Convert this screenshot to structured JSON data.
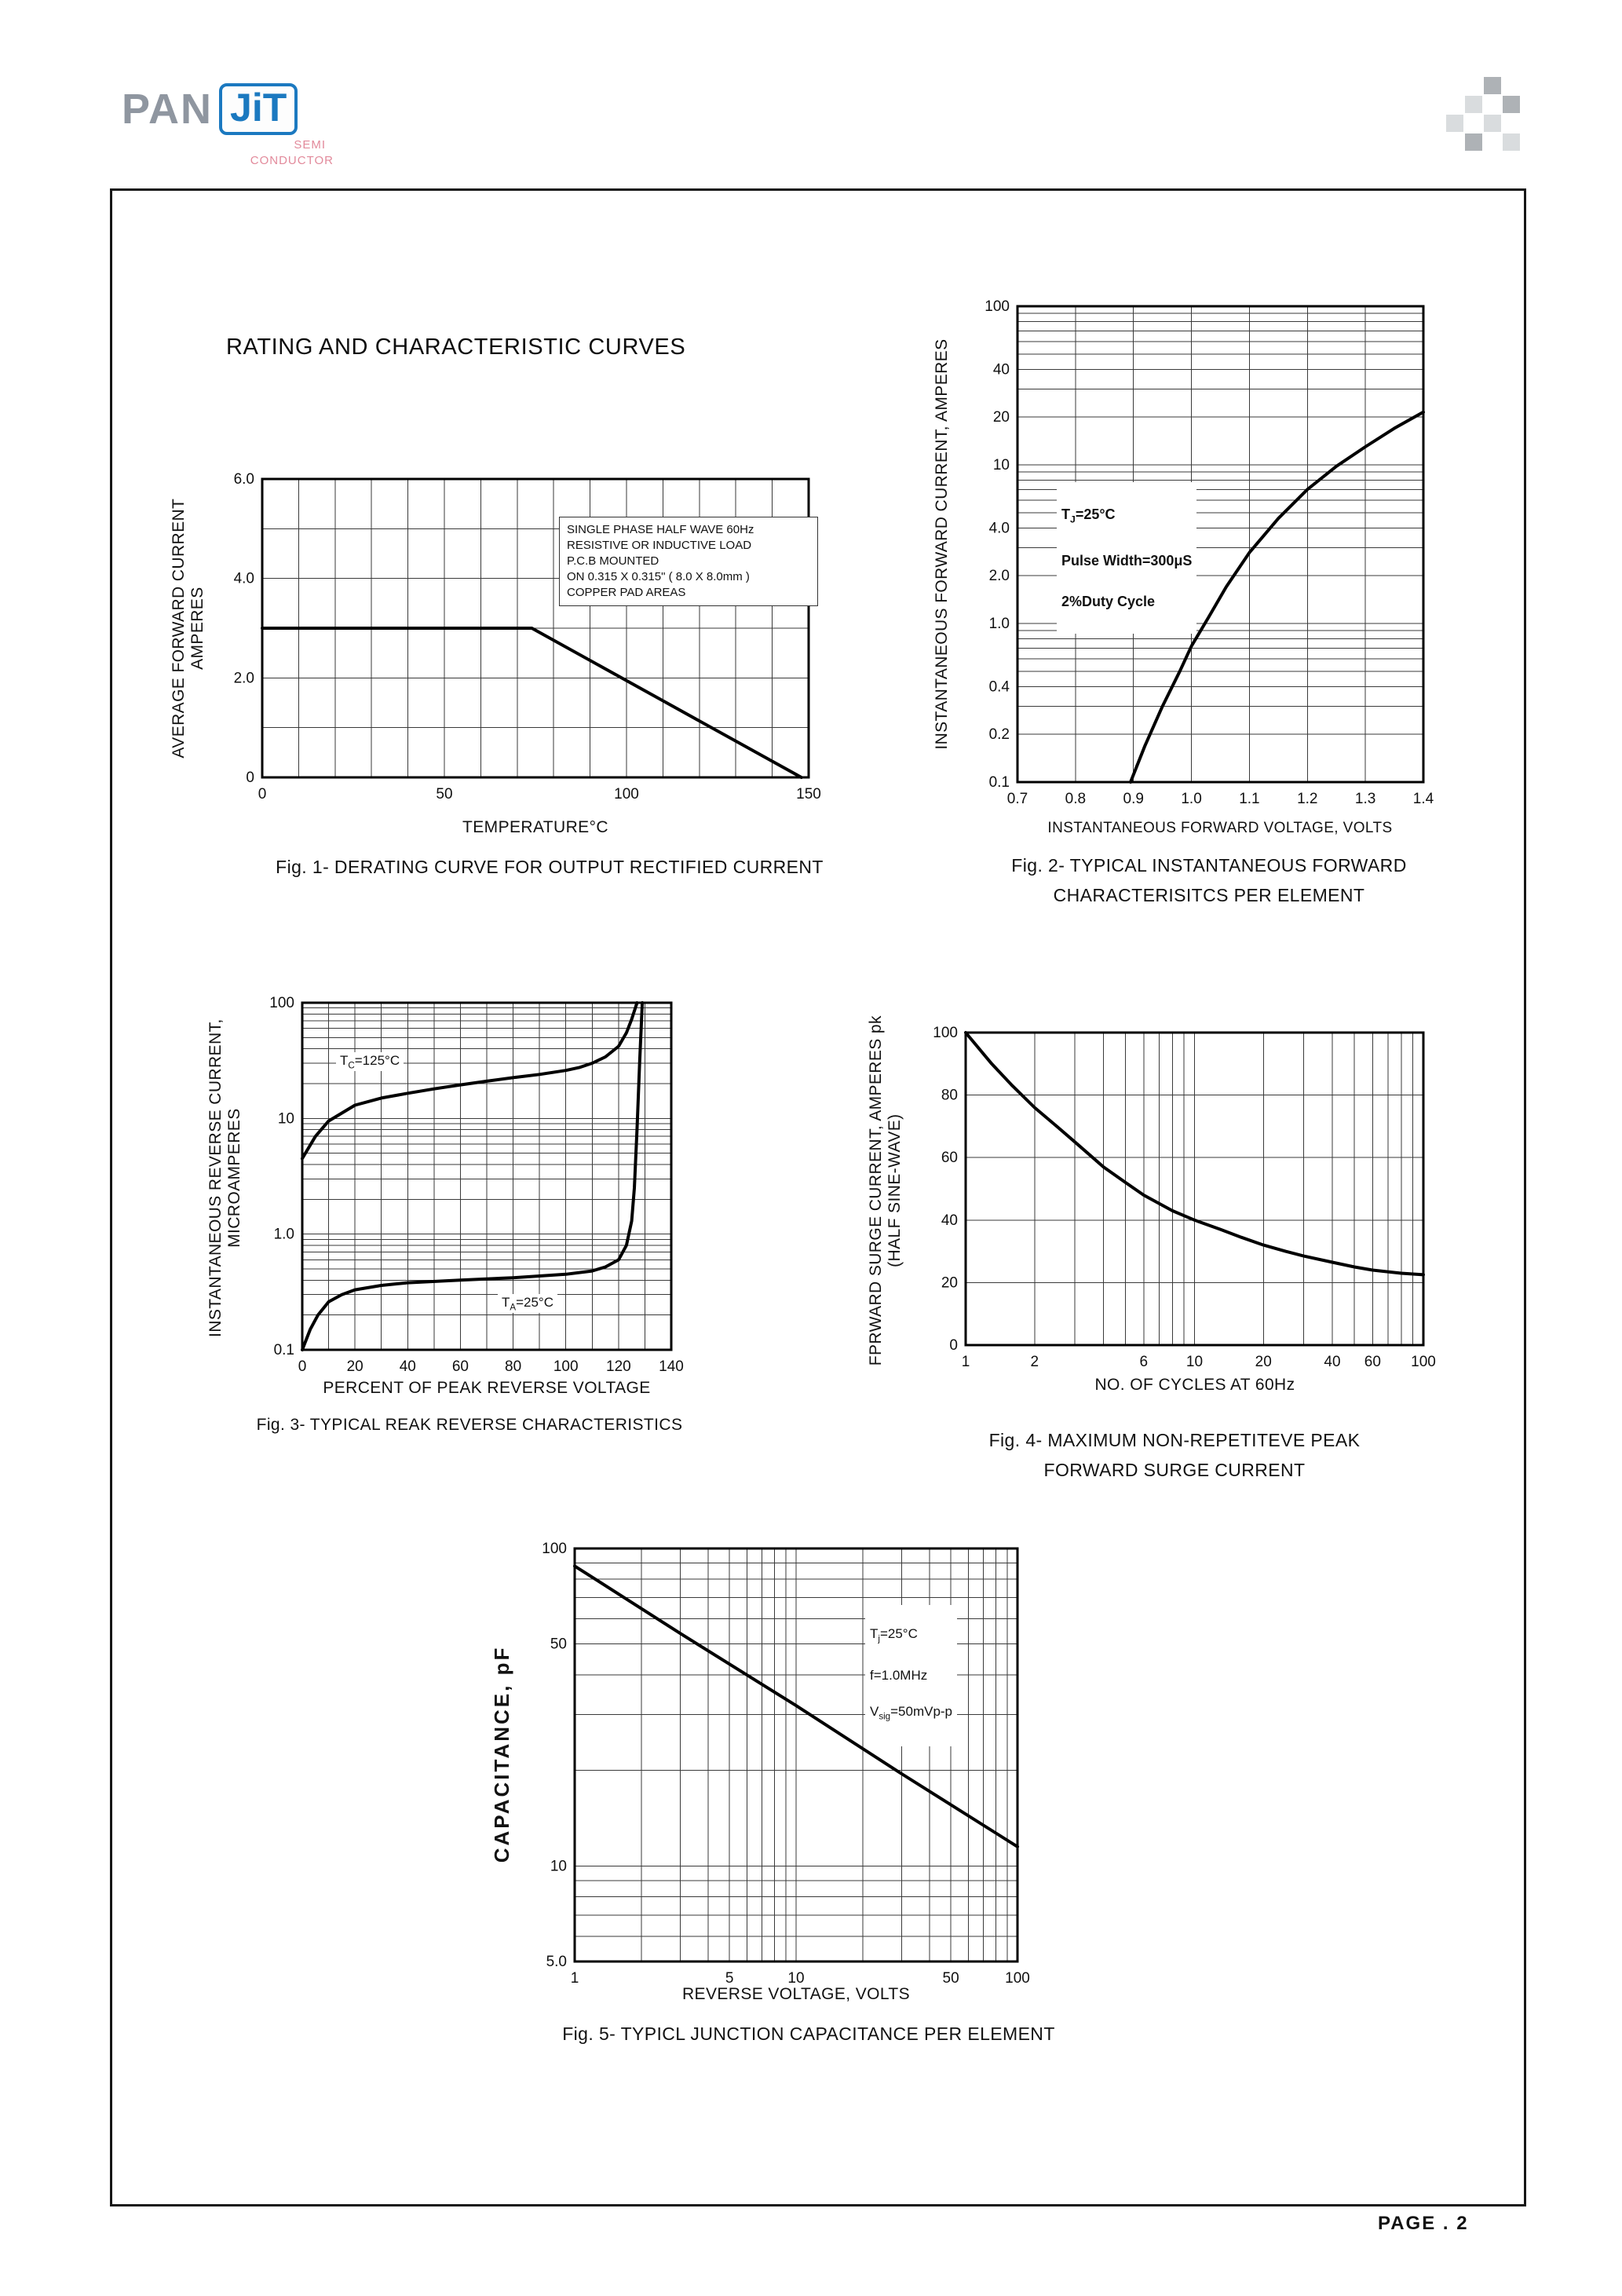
{
  "page": {
    "title": "RATING AND CHARACTERISTIC CURVES",
    "footer": "PAGE . 2"
  },
  "logo": {
    "pan": "PAN",
    "jit": "JiT",
    "semi": "SEMI",
    "conductor": "CONDUCTOR",
    "blue": "#1b79c0",
    "gray": "#8f96a0",
    "pink": "#e28a9b"
  },
  "chart_data": {
    "fig1": {
      "type": "line",
      "caption": "Fig. 1- DERATING CURVE FOR OUTPUT RECTIFIED CURRENT",
      "xlabel": "TEMPERATURE°C",
      "ylabel": "AVERAGE FORWARD CURRENT\nAMPERES",
      "x_axis": {
        "scale": "linear",
        "min": 0,
        "max": 150,
        "grid_step": 10,
        "ticks": [
          0,
          50,
          100,
          150
        ],
        "tick_labels": [
          "0",
          "50",
          "100",
          "150"
        ]
      },
      "y_axis": {
        "scale": "linear",
        "min": 0,
        "max": 6,
        "grid_step": 1,
        "ticks": [
          0,
          2,
          4,
          6
        ],
        "tick_labels": [
          "0",
          "2.0",
          "4.0",
          "6.0"
        ]
      },
      "margins": {
        "l": 84,
        "t": 18,
        "r": 20,
        "b": 34
      },
      "conditions": "SINGLE PHASE HALF WAVE 60Hz\nRESISTIVE OR INDUCTIVE LOAD\nP.C.B MOUNTED\nON 0.315 X 0.315\" ( 8.0 X 8.0mm )\nCOPPER PAD AREAS",
      "series": [
        {
          "name": "derating-curve",
          "points": [
            [
              0,
              3
            ],
            [
              74,
              3
            ],
            [
              148,
              0
            ]
          ]
        }
      ]
    },
    "fig2": {
      "type": "line",
      "caption": "Fig. 2- TYPICAL INSTANTANEOUS FORWARD\nCHARACTERISITCS PER ELEMENT",
      "xlabel": "INSTANTANEOUS FORWARD VOLTAGE, VOLTS",
      "ylabel": "INSTANTANEOUS FORWARD CURRENT, AMPERES",
      "x_axis": {
        "scale": "linear",
        "min": 0.7,
        "max": 1.4,
        "grid_step": 0.1,
        "ticks": [
          0.7,
          0.8,
          0.9,
          1.0,
          1.1,
          1.2,
          1.3,
          1.4
        ],
        "tick_labels": [
          "0.7",
          "0.8",
          "0.9",
          "1.0",
          "1.1",
          "1.2",
          "1.3",
          "1.4"
        ]
      },
      "y_axis": {
        "scale": "log",
        "min": 0.1,
        "max": 100,
        "ticks": [
          100,
          40,
          20,
          10,
          4,
          2,
          1,
          0.4,
          0.2,
          0.1
        ],
        "tick_labels": [
          "100",
          "40",
          "20",
          "10",
          "4.0",
          "2.0",
          "1.0",
          "0.4",
          "0.2",
          "0.1"
        ]
      },
      "margins": {
        "l": 86,
        "t": 18,
        "r": 37,
        "b": 38
      },
      "conditions": {
        "l1": {
          "pre": "T",
          "sub": "J",
          "post": "=25°C"
        },
        "l2": "Pulse Width=300μS",
        "l3": "2%Duty Cycle"
      },
      "series": [
        {
          "name": "forward-characteristic",
          "points": [
            [
              0.895,
              0.1
            ],
            [
              0.92,
              0.17
            ],
            [
              0.95,
              0.3
            ],
            [
              0.98,
              0.5
            ],
            [
              1.0,
              0.72
            ],
            [
              1.03,
              1.1
            ],
            [
              1.06,
              1.7
            ],
            [
              1.1,
              2.8
            ],
            [
              1.15,
              4.6
            ],
            [
              1.2,
              7
            ],
            [
              1.25,
              9.8
            ],
            [
              1.3,
              13
            ],
            [
              1.35,
              17
            ],
            [
              1.4,
              21.5
            ]
          ]
        }
      ]
    },
    "fig3": {
      "type": "line",
      "caption": "Fig. 3- TYPICAL REAK REVERSE CHARACTERISTICS",
      "xlabel": "PERCENT OF PEAK REVERSE VOLTAGE",
      "ylabel": "INSTANTANEOUS REVERSE CURRENT,\nMICROAMPERES",
      "x_axis": {
        "scale": "linear",
        "min": 0,
        "max": 140,
        "grid_step": 10,
        "ticks": [
          0,
          20,
          40,
          60,
          80,
          100,
          120,
          140
        ],
        "tick_labels": [
          "0",
          "20",
          "40",
          "60",
          "80",
          "100",
          "120",
          "140"
        ]
      },
      "y_axis": {
        "scale": "log",
        "min": 0.1,
        "max": 100,
        "ticks": [
          100,
          10,
          1,
          0.1
        ],
        "tick_labels": [
          "100",
          "10",
          "1.0",
          "0.1"
        ]
      },
      "margins": {
        "l": 85,
        "t": 18,
        "r": 45,
        "b": 32
      },
      "curve_labels": [
        {
          "pre": "T",
          "sub": "C",
          "post": "=125°C"
        },
        {
          "pre": "T",
          "sub": "A",
          "post": "=25°C"
        }
      ],
      "series": [
        {
          "name": "tc-125c",
          "points": [
            [
              0,
              4.5
            ],
            [
              5,
              7
            ],
            [
              10,
              9.5
            ],
            [
              20,
              13
            ],
            [
              30,
              15
            ],
            [
              40,
              16.5
            ],
            [
              50,
              18
            ],
            [
              60,
              19.5
            ],
            [
              70,
              21
            ],
            [
              80,
              22.5
            ],
            [
              90,
              24
            ],
            [
              100,
              26
            ],
            [
              105,
              27.5
            ],
            [
              110,
              30
            ],
            [
              115,
              34
            ],
            [
              120,
              42
            ],
            [
              123,
              55
            ],
            [
              125,
              72
            ],
            [
              127,
              100
            ]
          ]
        },
        {
          "name": "ta-25c",
          "points": [
            [
              0,
              0.1
            ],
            [
              3,
              0.15
            ],
            [
              6,
              0.2
            ],
            [
              10,
              0.26
            ],
            [
              15,
              0.3
            ],
            [
              20,
              0.33
            ],
            [
              30,
              0.36
            ],
            [
              40,
              0.38
            ],
            [
              60,
              0.4
            ],
            [
              80,
              0.42
            ],
            [
              100,
              0.45
            ],
            [
              110,
              0.48
            ],
            [
              115,
              0.52
            ],
            [
              120,
              0.6
            ],
            [
              123,
              0.8
            ],
            [
              125,
              1.3
            ],
            [
              126,
              2.5
            ],
            [
              127,
              8
            ],
            [
              128,
              30
            ],
            [
              129,
              100
            ]
          ]
        }
      ]
    },
    "fig4": {
      "type": "line",
      "caption": "Fig. 4- MAXIMUM NON-REPETITEVE PEAK\nFORWARD SURGE CURRENT",
      "xlabel": "NO. OF CYCLES AT 60Hz",
      "ylabel": "FPRWARD SURGE CURRENT, AMPERES pk\n(HALF SINE-WAVE)",
      "x_axis": {
        "scale": "log",
        "min": 1,
        "max": 100,
        "ticks": [
          1,
          2,
          6,
          10,
          20,
          40,
          60,
          100
        ],
        "tick_labels": [
          "1",
          "2",
          "6",
          "10",
          "20",
          "40",
          "60",
          "100"
        ]
      },
      "y_axis": {
        "scale": "linear",
        "min": 0,
        "max": 100,
        "grid_step": 20,
        "ticks": [
          0,
          20,
          40,
          60,
          80,
          100
        ],
        "tick_labels": [
          "0",
          "20",
          "40",
          "60",
          "80",
          "100"
        ]
      },
      "margins": {
        "l": 90,
        "t": 18,
        "r": 37,
        "b": 34
      },
      "series": [
        {
          "name": "surge-current",
          "points": [
            [
              1,
              100
            ],
            [
              1.3,
              90
            ],
            [
              1.6,
              83
            ],
            [
              2,
              76
            ],
            [
              2.5,
              70
            ],
            [
              3,
              65
            ],
            [
              4,
              57
            ],
            [
              5,
              52
            ],
            [
              6,
              48
            ],
            [
              8,
              43
            ],
            [
              10,
              40
            ],
            [
              13,
              37
            ],
            [
              16,
              34.5
            ],
            [
              20,
              32
            ],
            [
              25,
              30
            ],
            [
              30,
              28.5
            ],
            [
              40,
              26.5
            ],
            [
              50,
              25
            ],
            [
              60,
              24
            ],
            [
              80,
              23
            ],
            [
              100,
              22.5
            ]
          ]
        }
      ]
    },
    "fig5": {
      "type": "line",
      "caption": "Fig. 5- TYPICL JUNCTION CAPACITANCE PER ELEMENT",
      "xlabel": "REVERSE VOLTAGE, VOLTS",
      "ylabel": "CAPACITANCE, pF",
      "x_axis": {
        "scale": "log",
        "min": 1,
        "max": 100,
        "ticks": [
          1,
          5,
          10,
          50,
          100
        ],
        "tick_labels": [
          "1",
          "5",
          "10",
          "50",
          "100"
        ]
      },
      "y_axis": {
        "scale": "log",
        "min": 5,
        "max": 100,
        "ticks": [
          100,
          50,
          10,
          5
        ],
        "tick_labels": [
          "100",
          "50",
          "10",
          "5.0"
        ]
      },
      "margins": {
        "l": 87,
        "t": 18,
        "r": 49,
        "b": 34
      },
      "conditions": {
        "l1": {
          "pre": "T",
          "sub": "j",
          "post": "=25°C"
        },
        "l2": "f=1.0MHz",
        "l3": {
          "pre": "V",
          "sub": "sig",
          "post": "=50mVp-p"
        }
      },
      "series": [
        {
          "name": "junction-capacitance",
          "points": [
            [
              1,
              88
            ],
            [
              3,
              54
            ],
            [
              10,
              32
            ],
            [
              30,
              19.5
            ],
            [
              100,
              11.5
            ]
          ]
        }
      ]
    }
  }
}
